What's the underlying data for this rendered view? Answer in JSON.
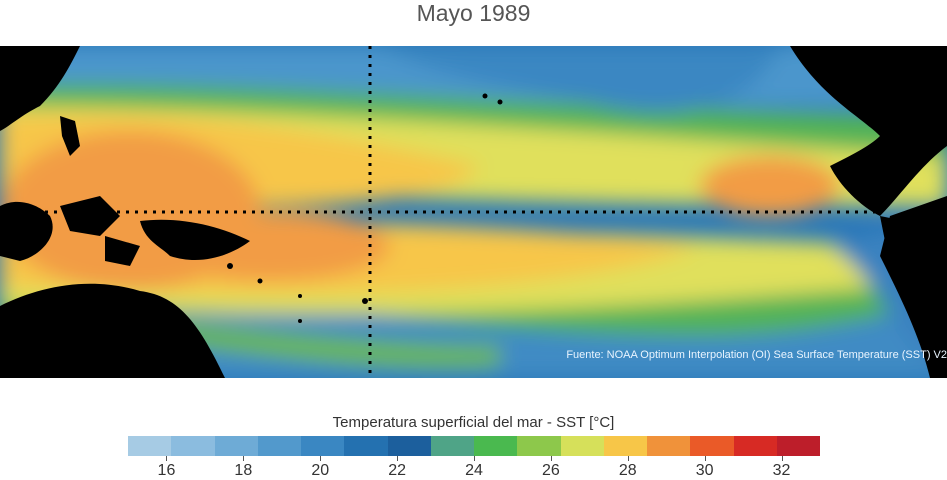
{
  "title": "Mayo 1989",
  "source": "Fuente: NOAA Optimum Interpolation (OI) Sea Surface Temperature (SST) V2",
  "colorbar": {
    "title": "Temperatura superficial del mar - SST  [°C]",
    "colors": [
      "#a6cbe4",
      "#8bbcdf",
      "#6eabd6",
      "#5299cc",
      "#3a87c2",
      "#2471b0",
      "#1c5f9d",
      "#4fa487",
      "#4ab94f",
      "#8dc84b",
      "#d6e05a",
      "#f7c648",
      "#f0923a",
      "#ea5a28",
      "#d72a24",
      "#bd1e2a"
    ],
    "ticks": [
      {
        "label": "16",
        "value": 16
      },
      {
        "label": "18",
        "value": 18
      },
      {
        "label": "20",
        "value": 20
      },
      {
        "label": "22",
        "value": 22
      },
      {
        "label": "24",
        "value": 24
      },
      {
        "label": "26",
        "value": 26
      },
      {
        "label": "28",
        "value": 28
      },
      {
        "label": "30",
        "value": 30
      },
      {
        "label": "32",
        "value": 32
      }
    ],
    "range": [
      15,
      33
    ]
  },
  "map_colors": {
    "land": "#000000",
    "cold": "#2a78b8",
    "cool": "#4b96cc",
    "mild": "#52b356",
    "warm": "#e0e05c",
    "hot": "#f7c648",
    "hotter": "#f29c45",
    "dateline": "#000000"
  }
}
